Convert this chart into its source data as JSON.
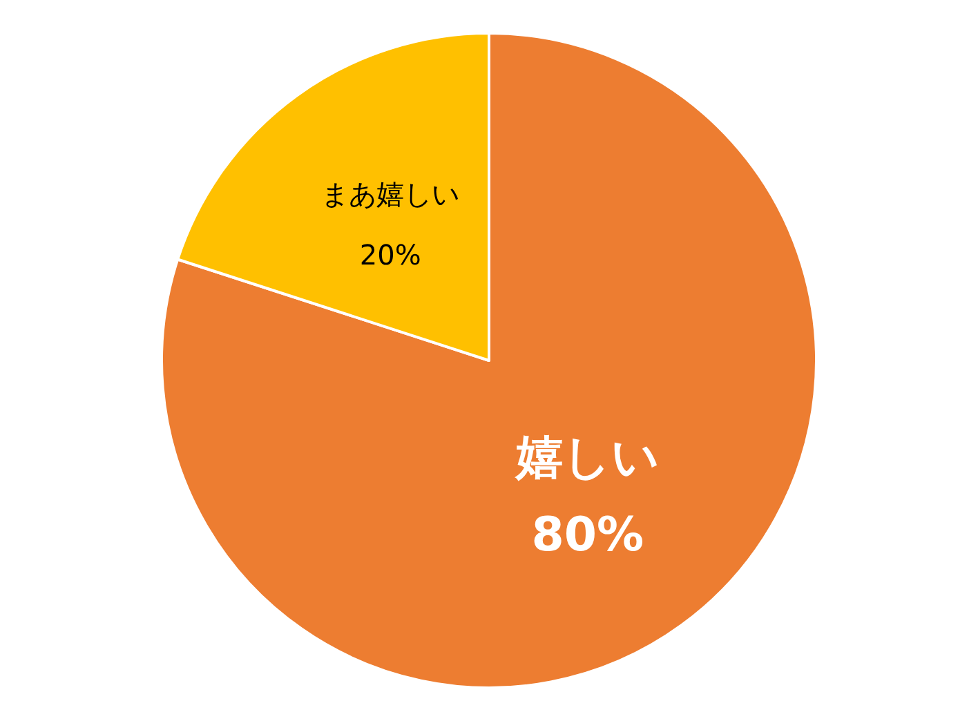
{
  "chart_data": {
    "type": "pie",
    "categories": [
      "嬉しい",
      "まあ嬉しい"
    ],
    "values": [
      80,
      20
    ],
    "value_labels": [
      "80%",
      "20%"
    ],
    "colors": [
      "#ed7d31",
      "#ffc000"
    ]
  }
}
